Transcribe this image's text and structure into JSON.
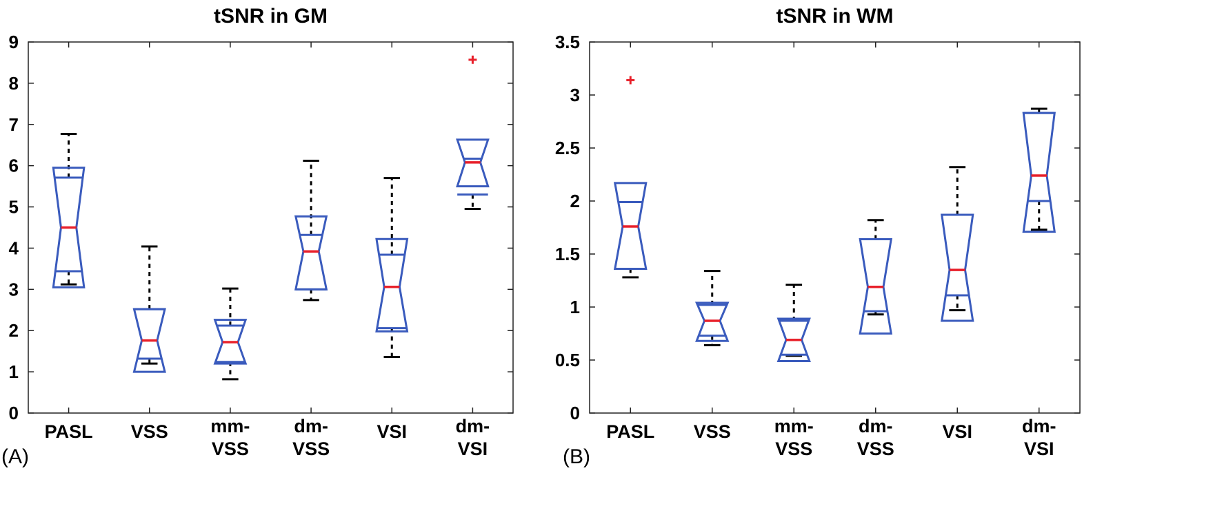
{
  "chart_data": [
    {
      "type": "box",
      "panel_label": "(A)",
      "title": "tSNR in GM",
      "xlabel": "",
      "ylabel": "",
      "ylim": [
        0,
        9
      ],
      "yticks": [
        0,
        1,
        2,
        3,
        4,
        5,
        6,
        7,
        8,
        9
      ],
      "grid": false,
      "notched": true,
      "colors": {
        "box": "#3a5bbd",
        "median": "#e8202a",
        "whisker": "#000000",
        "outlier": "#e8202a"
      },
      "categories": [
        [
          "PASL"
        ],
        [
          "VSS"
        ],
        [
          "mm-",
          "VSS"
        ],
        [
          "dm-",
          "VSS"
        ],
        [
          "VSI"
        ],
        [
          "dm-",
          "VSI"
        ]
      ],
      "boxes": [
        {
          "whisker_low": 3.12,
          "q1": 3.44,
          "median": 4.5,
          "q3": 5.71,
          "whisker_high": 6.77,
          "notch_low": 3.05,
          "notch_high": 5.95,
          "outliers": []
        },
        {
          "whisker_low": 1.2,
          "q1": 1.32,
          "median": 1.76,
          "q3": 2.52,
          "whisker_high": 4.04,
          "notch_low": 1.0,
          "notch_high": 2.52,
          "outliers": []
        },
        {
          "whisker_low": 0.82,
          "q1": 1.24,
          "median": 1.72,
          "q3": 2.12,
          "whisker_high": 3.02,
          "notch_low": 1.2,
          "notch_high": 2.26,
          "outliers": []
        },
        {
          "whisker_low": 2.74,
          "q1": 3.0,
          "median": 3.92,
          "q3": 4.32,
          "whisker_high": 6.12,
          "notch_low": 3.0,
          "notch_high": 4.77,
          "outliers": []
        },
        {
          "whisker_low": 1.36,
          "q1": 2.06,
          "median": 3.06,
          "q3": 3.84,
          "whisker_high": 5.7,
          "notch_low": 1.98,
          "notch_high": 4.22,
          "outliers": []
        },
        {
          "whisker_low": 4.95,
          "q1": 5.3,
          "median": 6.08,
          "q3": 6.17,
          "whisker_high": 6.17,
          "notch_low": 5.5,
          "notch_high": 6.63,
          "outliers": [
            8.57
          ]
        }
      ]
    },
    {
      "type": "box",
      "panel_label": "(B)",
      "title": "tSNR in WM",
      "xlabel": "",
      "ylabel": "",
      "ylim": [
        0,
        3.5
      ],
      "yticks": [
        "0",
        "0.5",
        "1",
        "1.5",
        "2",
        "2.5",
        "3",
        "3.5"
      ],
      "grid": false,
      "notched": true,
      "colors": {
        "box": "#3a5bbd",
        "median": "#e8202a",
        "whisker": "#000000",
        "outlier": "#e8202a"
      },
      "categories": [
        [
          "PASL"
        ],
        [
          "VSS"
        ],
        [
          "mm-",
          "VSS"
        ],
        [
          "dm-",
          "VSS"
        ],
        [
          "VSI"
        ],
        [
          "dm-",
          "VSI"
        ]
      ],
      "boxes": [
        {
          "whisker_low": 1.28,
          "q1": 1.36,
          "median": 1.76,
          "q3": 1.99,
          "whisker_high": 1.99,
          "notch_low": 1.36,
          "notch_high": 2.17,
          "outliers": [
            3.14
          ]
        },
        {
          "whisker_low": 0.64,
          "q1": 0.73,
          "median": 0.87,
          "q3": 1.02,
          "whisker_high": 1.34,
          "notch_low": 0.68,
          "notch_high": 1.04,
          "outliers": []
        },
        {
          "whisker_low": 0.54,
          "q1": 0.55,
          "median": 0.69,
          "q3": 0.87,
          "whisker_high": 1.21,
          "notch_low": 0.49,
          "notch_high": 0.89,
          "outliers": []
        },
        {
          "whisker_low": 0.93,
          "q1": 0.96,
          "median": 1.19,
          "q3": 1.64,
          "whisker_high": 1.82,
          "notch_low": 0.75,
          "notch_high": 1.64,
          "outliers": []
        },
        {
          "whisker_low": 0.97,
          "q1": 1.11,
          "median": 1.35,
          "q3": 1.87,
          "whisker_high": 2.32,
          "notch_low": 0.87,
          "notch_high": 1.87,
          "outliers": []
        },
        {
          "whisker_low": 1.73,
          "q1": 2.0,
          "median": 2.24,
          "q3": 2.83,
          "whisker_high": 2.87,
          "notch_low": 1.71,
          "notch_high": 2.83,
          "outliers": []
        }
      ]
    }
  ]
}
